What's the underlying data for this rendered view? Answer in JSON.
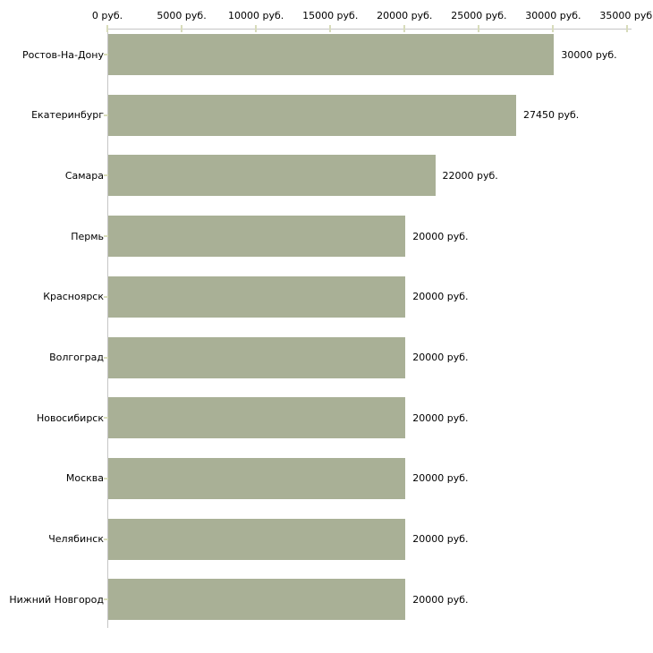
{
  "chart_data": {
    "type": "bar",
    "orientation": "horizontal",
    "title": "",
    "xlabel": "",
    "ylabel": "",
    "unit_suffix": " руб.",
    "categories": [
      "Ростов-На-Дону",
      "Екатеринбург",
      "Самара",
      "Пермь",
      "Красноярск",
      "Волгоград",
      "Новосибирск",
      "Москва",
      "Челябинск",
      "Нижний Новгород"
    ],
    "values": [
      30000,
      27450,
      22000,
      20000,
      20000,
      20000,
      20000,
      20000,
      20000,
      20000
    ],
    "value_labels": [
      "30000 руб.",
      "27450 руб.",
      "22000 руб.",
      "20000 руб.",
      "20000 руб.",
      "20000 руб.",
      "20000 руб.",
      "20000 руб.",
      "20000 руб.",
      "20000 руб."
    ],
    "x_ticks": [
      0,
      5000,
      10000,
      15000,
      20000,
      25000,
      30000,
      35000
    ],
    "x_tick_labels": [
      "0 руб.",
      "5000 руб.",
      "10000 руб.",
      "15000 руб.",
      "20000 руб.",
      "25000 руб.",
      "30000 руб.",
      "35000 руб."
    ],
    "xlim": [
      0,
      35000
    ],
    "grid": false,
    "legend": null,
    "colors": {
      "bar": "#a9b096",
      "axis": "#c6c6c6",
      "tick": "#d8dcbb",
      "text": "#000000",
      "background": "#ffffff"
    }
  }
}
